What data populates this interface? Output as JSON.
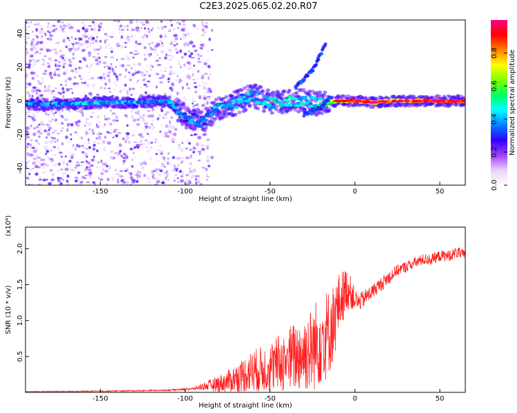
{
  "title": "C2E3.2025.065.02.20.R07",
  "chart_data": [
    {
      "type": "heatmap",
      "xlabel": "Height of straight line (km)",
      "ylabel": "Frequency (Hz)",
      "xlim": [
        -194,
        65
      ],
      "ylim": [
        -50,
        48
      ],
      "xticks": [
        -150,
        -100,
        -50,
        0,
        50
      ],
      "yticks": [
        -40,
        -20,
        0,
        20,
        40
      ],
      "colorbar": {
        "label": "Normalized spectral amplitude",
        "range": [
          0.0,
          1.0
        ],
        "ticks": [
          "0.0",
          "0.2",
          "0.4",
          "0.6",
          "0.8"
        ],
        "tick_values": [
          0.0,
          0.2,
          0.4,
          0.6,
          0.8
        ],
        "colormap": [
          "#ffffff",
          "#e8d0ff",
          "#a040ff",
          "#3000ff",
          "#0080ff",
          "#00ffff",
          "#00ff60",
          "#80ff00",
          "#ffff00",
          "#ff8000",
          "#ff0000",
          "#ff0080"
        ]
      },
      "ridge": [
        {
          "x": -194,
          "y": -2,
          "amp": 0.35
        },
        {
          "x": -170,
          "y": -2,
          "amp": 0.38
        },
        {
          "x": -150,
          "y": -1,
          "amp": 0.4
        },
        {
          "x": -130,
          "y": -1,
          "amp": 0.38
        },
        {
          "x": -110,
          "y": 0,
          "amp": 0.4
        },
        {
          "x": -100,
          "y": -9,
          "amp": 0.35
        },
        {
          "x": -90,
          "y": -13,
          "amp": 0.32
        },
        {
          "x": -80,
          "y": -4,
          "amp": 0.38
        },
        {
          "x": -70,
          "y": -1,
          "amp": 0.4
        },
        {
          "x": -60,
          "y": 3,
          "amp": 0.42
        },
        {
          "x": -50,
          "y": -1,
          "amp": 0.45
        },
        {
          "x": -40,
          "y": 0,
          "amp": 0.45
        },
        {
          "x": -30,
          "y": 0,
          "amp": 0.42
        },
        {
          "x": -20,
          "y": -2,
          "amp": 0.5
        },
        {
          "x": -10,
          "y": 0,
          "amp": 0.7
        },
        {
          "x": 0,
          "y": 0,
          "amp": 0.85
        },
        {
          "x": 10,
          "y": -1,
          "amp": 0.8
        },
        {
          "x": 20,
          "y": 0,
          "amp": 0.75
        },
        {
          "x": 30,
          "y": 0,
          "amp": 0.78
        },
        {
          "x": 40,
          "y": 0,
          "amp": 0.85
        },
        {
          "x": 50,
          "y": 0,
          "amp": 0.88
        },
        {
          "x": 65,
          "y": 0,
          "amp": 0.85
        }
      ],
      "branches": [
        {
          "name": "",
          "points": [
            {
              "x": -35,
              "y": 8
            },
            {
              "x": -25,
              "y": 18
            },
            {
              "x": -17,
              "y": 34
            }
          ]
        },
        {
          "name": "",
          "points": [
            {
              "x": -30,
              "y": -8
            },
            {
              "x": -20,
              "y": -4
            },
            {
              "x": -15,
              "y": 2
            }
          ]
        }
      ]
    },
    {
      "type": "line",
      "xlabel": "Height of straight line (km)",
      "ylabel": "SNR (10 * v/v)",
      "y_multiplier": "(x10⁴)",
      "xlim": [
        -194,
        65
      ],
      "ylim": [
        0,
        2.3
      ],
      "xticks": [
        -150,
        -100,
        -50,
        0,
        50
      ],
      "yticks": [
        0.5,
        1.0,
        1.5,
        2.0
      ],
      "ytick_labels": [
        "0.5",
        "1.0",
        "1.5",
        "2.0"
      ],
      "color": "#ff2020",
      "series": [
        {
          "name": "",
          "x": [
            -194,
            -150,
            -110,
            -95,
            -90,
            -85,
            -80,
            -75,
            -70,
            -65,
            -60,
            -55,
            -50,
            -45,
            -40,
            -35,
            -30,
            -25,
            -22,
            -20,
            -18,
            -15,
            -12,
            -10,
            -8,
            -5,
            -3,
            0,
            2,
            5,
            10,
            15,
            20,
            25,
            30,
            35,
            40,
            45,
            50,
            55,
            60,
            65
          ],
          "y": [
            0.01,
            0.015,
            0.03,
            0.05,
            0.08,
            0.1,
            0.12,
            0.15,
            0.2,
            0.25,
            0.3,
            0.32,
            0.35,
            0.4,
            0.45,
            0.5,
            0.55,
            0.6,
            0.7,
            0.8,
            0.78,
            0.85,
            1.0,
            1.2,
            1.3,
            1.45,
            1.4,
            1.3,
            1.25,
            1.3,
            1.4,
            1.5,
            1.6,
            1.7,
            1.75,
            1.8,
            1.85,
            1.85,
            1.9,
            1.9,
            1.95,
            1.9
          ],
          "noise": [
            0.005,
            0.008,
            0.01,
            0.02,
            0.05,
            0.08,
            0.12,
            0.15,
            0.2,
            0.25,
            0.3,
            0.32,
            0.35,
            0.4,
            0.45,
            0.5,
            0.55,
            0.6,
            0.65,
            0.7,
            0.65,
            0.6,
            0.55,
            0.45,
            0.4,
            0.3,
            0.25,
            0.15,
            0.12,
            0.12,
            0.1,
            0.1,
            0.1,
            0.08,
            0.08,
            0.08,
            0.08,
            0.08,
            0.08,
            0.08,
            0.08,
            0.08
          ]
        }
      ]
    }
  ]
}
